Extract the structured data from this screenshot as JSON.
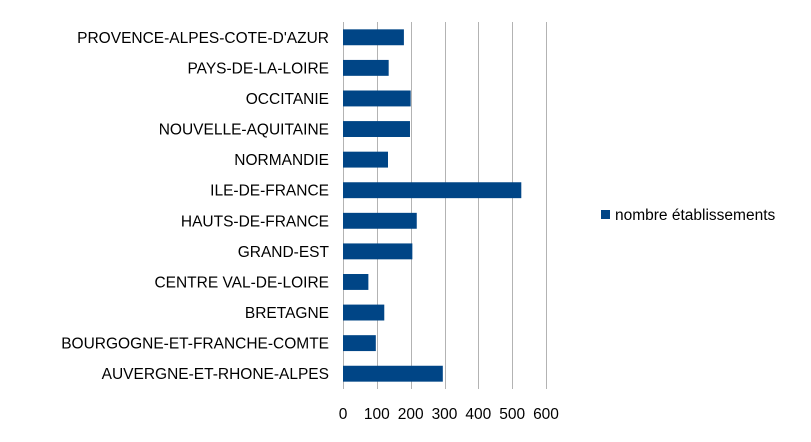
{
  "chart_data": {
    "type": "bar",
    "orientation": "horizontal",
    "title": "",
    "xlabel": "",
    "ylabel": "",
    "categories": [
      "PROVENCE-ALPES-COTE-D'AZUR",
      "PAYS-DE-LA-LOIRE",
      "OCCITANIE",
      "NOUVELLE-AQUITAINE",
      "NORMANDIE",
      "ILE-DE-FRANCE",
      "HAUTS-DE-FRANCE",
      "GRAND-EST",
      "CENTRE VAL-DE-LOIRE",
      "BRETAGNE",
      "BOURGOGNE-ET-FRANCHE-COMTE",
      "AUVERGNE-ET-RHONE-ALPES"
    ],
    "series": [
      {
        "name": "nombre établissements",
        "values": [
          180,
          135,
          200,
          198,
          133,
          527,
          218,
          205,
          75,
          122,
          97,
          295
        ]
      }
    ],
    "xlim": [
      0,
      600
    ],
    "x_ticks": [
      "0",
      "100",
      "200",
      "300",
      "400",
      "500",
      "600"
    ],
    "grid": true,
    "legend_position": "right",
    "colors": {
      "bar": "#004586",
      "grid": "#b3b3b3"
    }
  }
}
